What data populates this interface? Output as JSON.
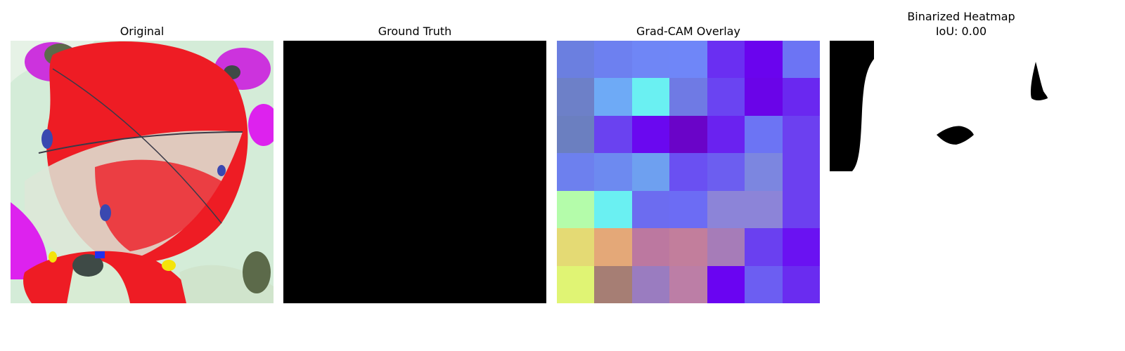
{
  "panels": [
    {
      "title": "Original"
    },
    {
      "title": "Ground Truth"
    },
    {
      "title": "Grad-CAM Overlay"
    },
    {
      "title": "Binarized Heatmap",
      "subtitle": "IoU: 0.00"
    }
  ],
  "gradcam_grid": [
    [
      "#6b7fe0",
      "#6d80f0",
      "#6f86f6",
      "#6f86f8",
      "#6a2ff2",
      "#6a04ee",
      "#6c74f4"
    ],
    [
      "#6d80c8",
      "#6eaaf6",
      "#6af0f2",
      "#6f7ae4",
      "#6a44f2",
      "#6a04e8",
      "#6a28f0"
    ],
    [
      "#6b7fc0",
      "#6a42f0",
      "#6a08f0",
      "#6a04c8",
      "#6a22f0",
      "#6c74f4",
      "#6c40f0"
    ],
    [
      "#6d80ee",
      "#6d8af0",
      "#6ea0f0",
      "#6a50f2",
      "#6c5ef0",
      "#7c86e0",
      "#6c40f0"
    ],
    [
      "#b4fcaa",
      "#6af0f2",
      "#6c6cf0",
      "#6c6cf4",
      "#8c84d8",
      "#8c84d8",
      "#6c40f0"
    ],
    [
      "#e4da74",
      "#e4a878",
      "#bc78a0",
      "#c27e9c",
      "#a67cb8",
      "#6a40f0",
      "#6a12f2"
    ],
    [
      "#e0f474",
      "#a67e74",
      "#9a7cc0",
      "#bc7ea6",
      "#6a04f2",
      "#6c5ef2",
      "#6a2cf0"
    ]
  ]
}
